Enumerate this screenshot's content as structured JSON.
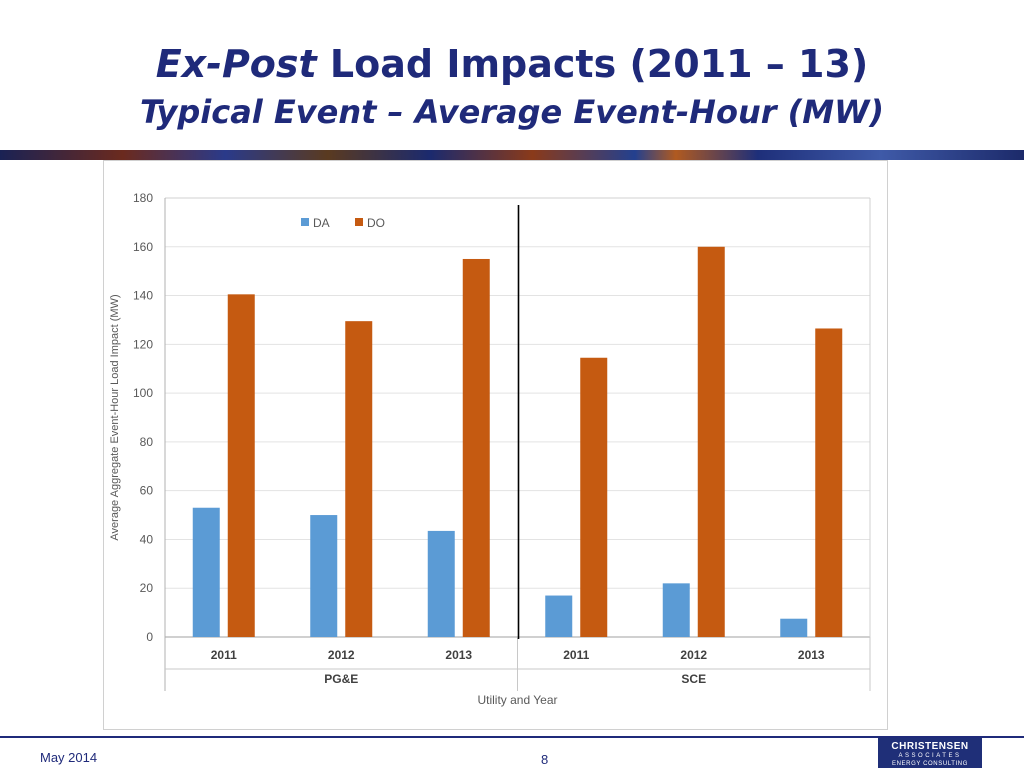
{
  "slide": {
    "title_em": "Ex-Post",
    "title_rest": " Load Impacts (2011 – 13)",
    "subtitle": "Typical Event – Average Event-Hour (MW)",
    "footer_date": "May 2014",
    "page_number": "8",
    "logo": {
      "line1": "CHRISTENSEN",
      "line2": "ASSOCIATES",
      "line3": "ENERGY CONSULTING"
    }
  },
  "chart_data": {
    "type": "bar",
    "title": "",
    "xlabel": "Utility and Year",
    "ylabel": "Average Aggregate Event-Hour Load Impact (MW)",
    "ylim": [
      0,
      180
    ],
    "yticks": [
      0,
      20,
      40,
      60,
      80,
      100,
      120,
      140,
      160,
      180
    ],
    "grid": true,
    "legend_position": "top-left",
    "groups": [
      {
        "name": "PG&E",
        "categories": [
          "2011",
          "2012",
          "2013"
        ]
      },
      {
        "name": "SCE",
        "categories": [
          "2011",
          "2012",
          "2013"
        ]
      }
    ],
    "categories": [
      "2011",
      "2012",
      "2013",
      "2011",
      "2012",
      "2013"
    ],
    "series": [
      {
        "name": "DA",
        "color": "#5b9bd5",
        "values": [
          53,
          50,
          43.5,
          17,
          22,
          7.5
        ]
      },
      {
        "name": "DO",
        "color": "#c55a11",
        "values": [
          140.5,
          129.5,
          155,
          114.5,
          160,
          126.5
        ]
      }
    ]
  }
}
